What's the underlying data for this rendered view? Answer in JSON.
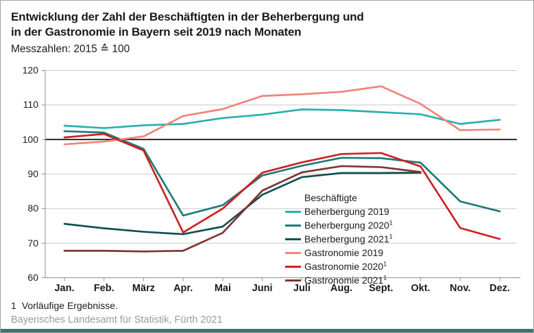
{
  "header": {
    "title_line1": "Entwicklung der Zahl der Beschäftigten in der Beherbergung und",
    "title_line2": "in der Gastronomie in Bayern seit 2019 nach Monaten",
    "subtitle": "Messzahlen: 2015 ≙ 100"
  },
  "chart_data": {
    "type": "line",
    "categories": [
      "Jan.",
      "Feb.",
      "März",
      "Apr.",
      "Mai",
      "Juni",
      "Juli",
      "Aug.",
      "Sept.",
      "Okt.",
      "Nov.",
      "Dez."
    ],
    "ylim": [
      60,
      120
    ],
    "yticks": [
      60,
      70,
      80,
      90,
      100,
      110,
      120
    ],
    "baseline": 100,
    "grid": true,
    "legend_title": "Beschäftigte",
    "legend_position": "inside-right-middle",
    "series": [
      {
        "name": "Beherbergung 2019",
        "sup": "",
        "color": "#29b1ac",
        "values": [
          104.0,
          103.3,
          104.1,
          104.5,
          106.2,
          107.2,
          108.7,
          108.5,
          107.9,
          107.3,
          104.5,
          105.7
        ]
      },
      {
        "name": "Beherbergung 2020",
        "sup": "1",
        "color": "#1e7b7a",
        "values": [
          102.4,
          102.0,
          97.3,
          78.0,
          81.0,
          89.6,
          92.4,
          94.7,
          94.6,
          93.3,
          82.1,
          79.2
        ]
      },
      {
        "name": "Beherbergung 2021",
        "sup": "1",
        "color": "#11504f",
        "values": [
          75.6,
          74.3,
          73.3,
          72.6,
          74.8,
          84.0,
          89.1,
          90.3,
          90.3,
          90.4
        ]
      },
      {
        "name": "Gastronomie 2019",
        "sup": "",
        "color": "#f28379",
        "values": [
          98.6,
          99.4,
          100.9,
          106.8,
          108.8,
          112.6,
          113.1,
          113.8,
          115.4,
          110.3,
          102.7,
          102.9
        ]
      },
      {
        "name": "Gastronomie 2020",
        "sup": "1",
        "color": "#cc2122",
        "values": [
          100.6,
          101.6,
          96.8,
          73.1,
          80.0,
          90.4,
          93.4,
          95.8,
          96.1,
          92.2,
          74.4,
          71.2
        ]
      },
      {
        "name": "Gastronomie 2021",
        "sup": "1",
        "color": "#7e3434",
        "values": [
          67.8,
          67.8,
          67.6,
          67.8,
          73.0,
          85.2,
          90.5,
          92.3,
          92.0,
          90.6
        ]
      }
    ]
  },
  "footnote": {
    "marker": "1",
    "text": "Vorläufige Ergebnisse."
  },
  "source": "Bayerisches Landesamt für Statistik, Fürth 2021",
  "colors": {
    "accent_bar": "#3f6f6f",
    "grid": "#c8c8c8",
    "axis": "#8f8f8f",
    "baseline": "#1a1a1a",
    "text": "#1a1a1a",
    "source_text": "#9b9b9b"
  }
}
